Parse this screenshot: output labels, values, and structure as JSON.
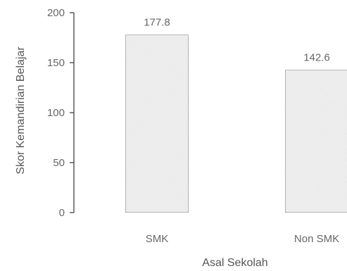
{
  "chart_data": {
    "type": "bar",
    "categories": [
      "SMK",
      "Non SMK"
    ],
    "values": [
      177.8,
      142.6
    ],
    "data_labels": [
      "177.8",
      "142.6"
    ],
    "xlabel": "Asal Sekolah",
    "ylabel": "Skor Kemandirian Belajar",
    "ylim": [
      0,
      200
    ],
    "yticks": [
      "0",
      "50",
      "100",
      "150",
      "200"
    ],
    "grid": false,
    "legend": "none",
    "colors": {
      "bar_fill": "#f1f1f1",
      "bar_stroke": "#7a7a7a",
      "axis": "#333333",
      "text": "#666666"
    }
  }
}
